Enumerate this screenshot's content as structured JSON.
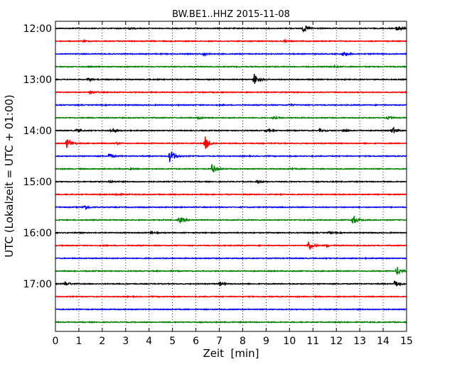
{
  "chart_data": {
    "type": "line",
    "title": "BW.BE1..HHZ 2015-11-08",
    "xlabel": "Zeit  [min]",
    "ylabel": "UTC (Lokalzeit = UTC + 01:00)",
    "xlim": [
      0,
      15
    ],
    "x_ticks": [
      "0",
      "1",
      "2",
      "3",
      "4",
      "5",
      "6",
      "7",
      "8",
      "9",
      "10",
      "11",
      "12",
      "13",
      "14",
      "15"
    ],
    "y_ticks": [
      "12:00",
      "13:00",
      "14:00",
      "15:00",
      "16:00",
      "17:00"
    ],
    "grid": "vertical dotted",
    "series_colors": [
      "#000000",
      "#ff0000",
      "#0000ff",
      "#008000"
    ],
    "traces": [
      {
        "start": "12:00",
        "color": "#000000",
        "events": [
          {
            "t": 10.6,
            "amp": 0.9
          },
          {
            "t": 14.6,
            "amp": 0.8
          },
          {
            "t": 3.1,
            "amp": 0.2
          }
        ]
      },
      {
        "start": "12:15",
        "color": "#ff0000",
        "events": [
          {
            "t": 1.2,
            "amp": 0.15
          },
          {
            "t": 9.8,
            "amp": 0.15
          }
        ]
      },
      {
        "start": "12:30",
        "color": "#0000ff",
        "events": [
          {
            "t": 6.3,
            "amp": 0.25
          },
          {
            "t": 12.3,
            "amp": 0.6
          }
        ]
      },
      {
        "start": "12:45",
        "color": "#008000",
        "events": [
          {
            "t": 11.9,
            "amp": 0.2
          }
        ]
      },
      {
        "start": "13:00",
        "color": "#000000",
        "events": [
          {
            "t": 8.5,
            "amp": 1.4
          },
          {
            "t": 1.4,
            "amp": 0.3
          }
        ]
      },
      {
        "start": "13:15",
        "color": "#ff0000",
        "events": [
          {
            "t": 1.5,
            "amp": 0.4
          }
        ]
      },
      {
        "start": "13:30",
        "color": "#0000ff",
        "events": [
          {
            "t": 10.0,
            "amp": 0.15
          }
        ]
      },
      {
        "start": "13:45",
        "color": "#008000",
        "events": [
          {
            "t": 6.1,
            "amp": 0.25
          },
          {
            "t": 9.3,
            "amp": 0.3
          },
          {
            "t": 14.2,
            "amp": 0.3
          }
        ]
      },
      {
        "start": "14:00",
        "color": "#000000",
        "events": [
          {
            "t": 0.9,
            "amp": 0.3
          },
          {
            "t": 2.4,
            "amp": 0.5
          },
          {
            "t": 9.0,
            "amp": 0.3
          },
          {
            "t": 11.3,
            "amp": 0.3
          },
          {
            "t": 12.3,
            "amp": 0.3
          },
          {
            "t": 14.4,
            "amp": 0.8
          }
        ]
      },
      {
        "start": "14:15",
        "color": "#ff0000",
        "events": [
          {
            "t": 0.5,
            "amp": 1.2
          },
          {
            "t": 6.4,
            "amp": 1.6
          },
          {
            "t": 2.6,
            "amp": 0.2
          }
        ]
      },
      {
        "start": "14:30",
        "color": "#0000ff",
        "events": [
          {
            "t": 2.3,
            "amp": 0.5
          },
          {
            "t": 4.9,
            "amp": 1.7
          }
        ]
      },
      {
        "start": "14:45",
        "color": "#008000",
        "events": [
          {
            "t": 6.7,
            "amp": 1.2
          },
          {
            "t": 3.2,
            "amp": 0.15
          },
          {
            "t": 10.0,
            "amp": 0.15
          }
        ]
      },
      {
        "start": "15:00",
        "color": "#000000",
        "events": [
          {
            "t": 2.3,
            "amp": 0.25
          },
          {
            "t": 8.6,
            "amp": 0.25
          }
        ]
      },
      {
        "start": "15:15",
        "color": "#ff0000",
        "events": [
          {
            "t": 2.6,
            "amp": 0.3
          }
        ]
      },
      {
        "start": "15:30",
        "color": "#0000ff",
        "events": [
          {
            "t": 1.2,
            "amp": 0.6
          }
        ]
      },
      {
        "start": "15:45",
        "color": "#008000",
        "events": [
          {
            "t": 5.3,
            "amp": 0.7
          },
          {
            "t": 12.7,
            "amp": 1.1
          }
        ]
      },
      {
        "start": "16:00",
        "color": "#000000",
        "events": [
          {
            "t": 11.7,
            "amp": 0.25
          },
          {
            "t": 4.1,
            "amp": 0.15
          }
        ]
      },
      {
        "start": "16:15",
        "color": "#ff0000",
        "events": [
          {
            "t": 10.8,
            "amp": 1.1
          },
          {
            "t": 11.6,
            "amp": 0.3
          }
        ]
      },
      {
        "start": "16:30",
        "color": "#0000ff",
        "events": []
      },
      {
        "start": "16:45",
        "color": "#008000",
        "events": [
          {
            "t": 14.6,
            "amp": 1.0
          }
        ]
      },
      {
        "start": "17:00",
        "color": "#000000",
        "events": [
          {
            "t": 0.4,
            "amp": 0.6
          },
          {
            "t": 7.0,
            "amp": 0.4
          },
          {
            "t": 14.5,
            "amp": 0.8
          }
        ]
      },
      {
        "start": "17:15",
        "color": "#ff0000",
        "events": []
      },
      {
        "start": "17:30",
        "color": "#0000ff",
        "events": []
      },
      {
        "start": "17:45",
        "color": "#008000",
        "events": []
      }
    ]
  }
}
